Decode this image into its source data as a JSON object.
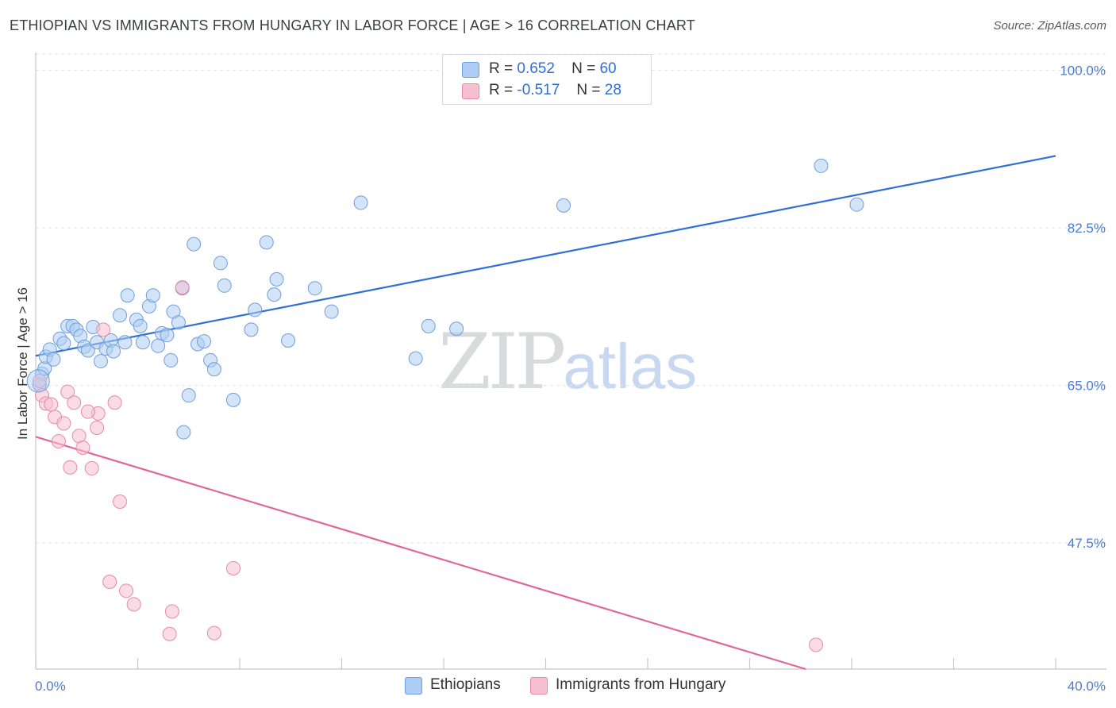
{
  "title": "ETHIOPIAN VS IMMIGRANTS FROM HUNGARY IN LABOR FORCE | AGE > 16 CORRELATION CHART",
  "source": "Source: ZipAtlas.com",
  "watermark": {
    "zip": "ZIP",
    "atlas": "atlas"
  },
  "legend": {
    "rows": [
      {
        "r_label": "R =",
        "r_value": "0.652",
        "n_label": "N =",
        "n_value": "60"
      },
      {
        "r_label": "R =",
        "r_value": "-0.517",
        "n_label": "N =",
        "n_value": "28"
      }
    ]
  },
  "bottom_legend": {
    "ethiopians": "Ethiopians",
    "hungary": "Immigrants from Hungary"
  },
  "colors": {
    "ethiopians_fill": "#aecdf4",
    "ethiopians_stroke": "#6f9fdc",
    "ethiopians_line": "#2f6fd6",
    "hungary_fill": "#f7c0d2",
    "hungary_stroke": "#e68aa8",
    "hungary_line": "#e0679a",
    "tick_text": "#4a7bd0",
    "grid": "#e0e3e8"
  },
  "chart_data": {
    "type": "scatter",
    "title": "ETHIOPIAN VS IMMIGRANTS FROM HUNGARY IN LABOR FORCE | AGE > 16 CORRELATION CHART",
    "xlabel": "",
    "ylabel": "In Labor Force | Age > 16",
    "xlim": [
      0,
      40
    ],
    "ylim": [
      33.5,
      102
    ],
    "x_tick_labels": [
      {
        "value": 0,
        "label": "0.0%"
      },
      {
        "value": 40,
        "label": "40.0%"
      }
    ],
    "y_tick_labels": [
      {
        "value": 100,
        "label": "100.0%"
      },
      {
        "value": 82.5,
        "label": "82.5%"
      },
      {
        "value": 65,
        "label": "65.0%"
      },
      {
        "value": 47.5,
        "label": "47.5%"
      }
    ],
    "grid": true,
    "legend_position": "top-center",
    "series": [
      {
        "name": "Ethiopians",
        "r": 0.652,
        "n": 60,
        "trend": [
          [
            0,
            68.3
          ],
          [
            40,
            90.5
          ]
        ],
        "points": [
          [
            0.25,
            66.3
          ],
          [
            0.35,
            66.9
          ],
          [
            0.4,
            68.2
          ],
          [
            0.55,
            69.0
          ],
          [
            0.7,
            67.9
          ],
          [
            0.95,
            70.2
          ],
          [
            1.1,
            69.7
          ],
          [
            1.25,
            71.6
          ],
          [
            1.45,
            71.6
          ],
          [
            1.6,
            71.2
          ],
          [
            1.75,
            70.5
          ],
          [
            1.9,
            69.3
          ],
          [
            2.05,
            68.9
          ],
          [
            2.25,
            71.5
          ],
          [
            2.4,
            69.8
          ],
          [
            2.55,
            67.7
          ],
          [
            2.75,
            69.1
          ],
          [
            2.95,
            70.0
          ],
          [
            3.05,
            68.8
          ],
          [
            3.3,
            72.8
          ],
          [
            3.5,
            69.8
          ],
          [
            3.6,
            75.0
          ],
          [
            3.95,
            72.3
          ],
          [
            4.1,
            71.6
          ],
          [
            4.2,
            69.8
          ],
          [
            4.45,
            73.8
          ],
          [
            4.6,
            75.0
          ],
          [
            4.8,
            69.4
          ],
          [
            4.95,
            70.8
          ],
          [
            5.15,
            70.6
          ],
          [
            5.3,
            67.8
          ],
          [
            5.4,
            73.2
          ],
          [
            5.6,
            72.0
          ],
          [
            5.8,
            59.8
          ],
          [
            6.0,
            63.9
          ],
          [
            6.2,
            80.7
          ],
          [
            6.35,
            69.6
          ],
          [
            6.6,
            69.9
          ],
          [
            6.85,
            67.8
          ],
          [
            7.0,
            66.8
          ],
          [
            7.25,
            78.6
          ],
          [
            7.4,
            76.1
          ],
          [
            7.75,
            63.4
          ],
          [
            8.45,
            71.2
          ],
          [
            8.6,
            73.4
          ],
          [
            9.05,
            80.9
          ],
          [
            9.35,
            75.1
          ],
          [
            9.45,
            76.8
          ],
          [
            9.9,
            70.0
          ],
          [
            10.95,
            75.8
          ],
          [
            11.6,
            73.2
          ],
          [
            12.75,
            85.3
          ],
          [
            14.9,
            68.0
          ],
          [
            15.4,
            71.6
          ],
          [
            16.5,
            71.3
          ],
          [
            20.7,
            85.0
          ],
          [
            30.8,
            89.4
          ],
          [
            32.2,
            85.1
          ],
          [
            0.15,
            65.1
          ],
          [
            5.75,
            75.8
          ]
        ]
      },
      {
        "name": "Immigrants from Hungary",
        "r": -0.517,
        "n": 28,
        "trend": [
          [
            0,
            59.3
          ],
          [
            30.2,
            33.5
          ]
        ],
        "points": [
          [
            0.15,
            65.5
          ],
          [
            0.25,
            63.9
          ],
          [
            0.4,
            63.0
          ],
          [
            0.6,
            62.9
          ],
          [
            0.75,
            61.5
          ],
          [
            0.9,
            58.8
          ],
          [
            1.1,
            60.8
          ],
          [
            1.25,
            64.3
          ],
          [
            1.35,
            55.9
          ],
          [
            1.5,
            63.1
          ],
          [
            1.7,
            59.4
          ],
          [
            1.85,
            58.1
          ],
          [
            2.2,
            55.8
          ],
          [
            2.4,
            60.3
          ],
          [
            2.45,
            61.9
          ],
          [
            2.65,
            71.2
          ],
          [
            2.9,
            43.2
          ],
          [
            3.1,
            63.1
          ],
          [
            3.3,
            52.1
          ],
          [
            3.55,
            42.2
          ],
          [
            3.85,
            40.7
          ],
          [
            5.25,
            37.4
          ],
          [
            5.35,
            39.9
          ],
          [
            5.75,
            75.9
          ],
          [
            7.0,
            37.5
          ],
          [
            7.75,
            44.7
          ],
          [
            30.6,
            36.2
          ],
          [
            2.05,
            62.1
          ]
        ]
      }
    ]
  }
}
